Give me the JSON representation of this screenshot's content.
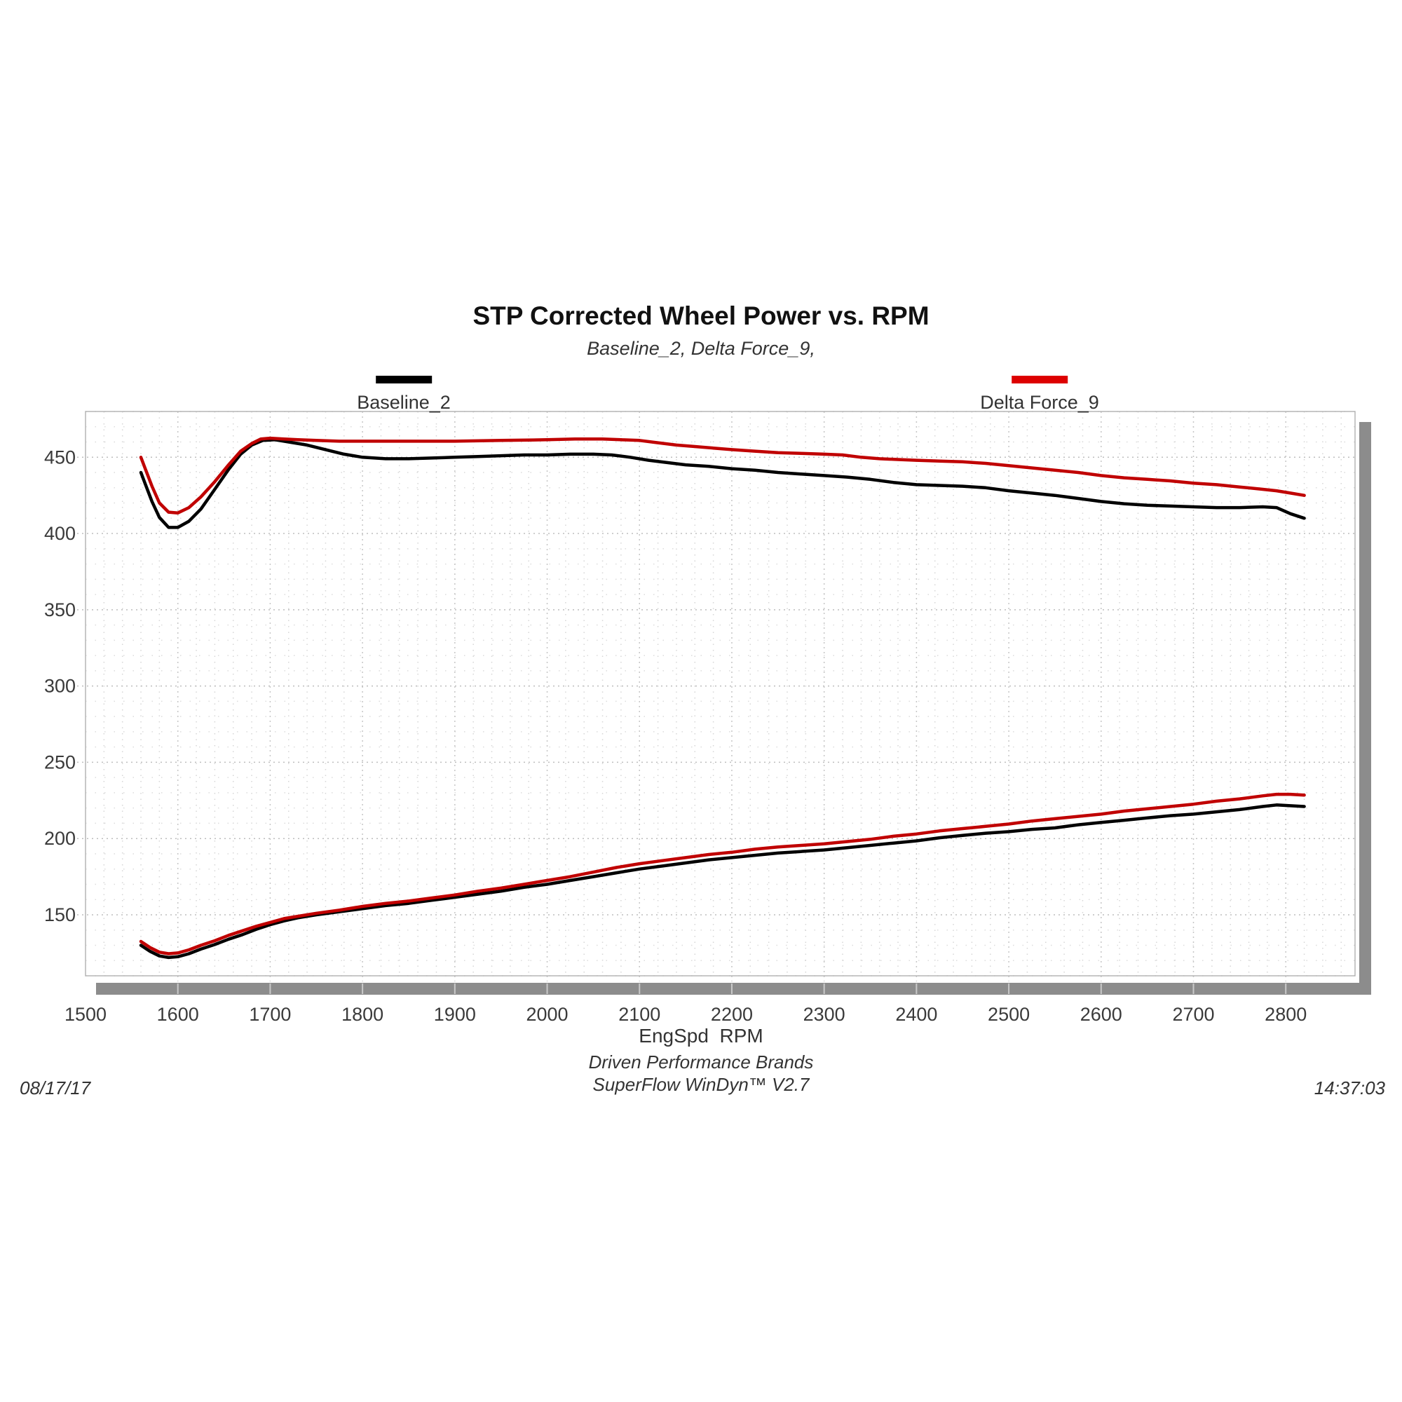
{
  "header": {
    "title": "STP Corrected Wheel Power vs. RPM",
    "subtitle": "Baseline_2, Delta Force_9,"
  },
  "legend": [
    {
      "label": "Baseline_2",
      "color": "#000000"
    },
    {
      "label": "Delta Force_9",
      "color": "#dd0000"
    }
  ],
  "footer": {
    "line1": "Driven Performance Brands",
    "line2": "SuperFlow WinDyn™  V2.7",
    "date": "08/17/17",
    "time": "14:37:03"
  },
  "chart_data": {
    "type": "line",
    "title": "STP Corrected Wheel Power vs. RPM",
    "subtitle": "Baseline_2, Delta Force_9,",
    "xlabel": "EngSpd  RPM",
    "ylabel": "",
    "xlim": [
      1500,
      2875
    ],
    "ylim": [
      110,
      480
    ],
    "x_ticks": [
      1500,
      1600,
      1700,
      1800,
      1900,
      2000,
      2100,
      2200,
      2300,
      2400,
      2500,
      2600,
      2700,
      2800
    ],
    "y_ticks": [
      150,
      200,
      250,
      300,
      350,
      400,
      450
    ],
    "grid": {
      "x_minor_step": 20,
      "y_minor_step": 10,
      "x_major_step": 100,
      "y_major_step": 50
    },
    "legend_position": "top",
    "colors": {
      "baseline": "#000000",
      "deltaforce": "#c00000",
      "grid_major": "#bdbdbd",
      "grid_minor": "#d6d6d6",
      "shadow": "#8c8c8c"
    },
    "series": [
      {
        "name": "Baseline_2 (upper curve)",
        "color": "#000000",
        "points": [
          [
            1560,
            440
          ],
          [
            1565,
            432
          ],
          [
            1572,
            421
          ],
          [
            1580,
            410.5
          ],
          [
            1590,
            404
          ],
          [
            1600,
            404
          ],
          [
            1612,
            408
          ],
          [
            1625,
            416
          ],
          [
            1640,
            429
          ],
          [
            1655,
            442
          ],
          [
            1668,
            452
          ],
          [
            1680,
            458
          ],
          [
            1692,
            461
          ],
          [
            1705,
            461.5
          ],
          [
            1720,
            460
          ],
          [
            1740,
            458
          ],
          [
            1760,
            455
          ],
          [
            1780,
            452
          ],
          [
            1800,
            450
          ],
          [
            1825,
            449
          ],
          [
            1850,
            449
          ],
          [
            1875,
            449.5
          ],
          [
            1900,
            450
          ],
          [
            1925,
            450.5
          ],
          [
            1950,
            451
          ],
          [
            1975,
            451.5
          ],
          [
            2000,
            451.5
          ],
          [
            2025,
            452
          ],
          [
            2050,
            452
          ],
          [
            2070,
            451.5
          ],
          [
            2090,
            450
          ],
          [
            2110,
            448
          ],
          [
            2130,
            446.5
          ],
          [
            2150,
            445
          ],
          [
            2175,
            444
          ],
          [
            2200,
            442.5
          ],
          [
            2225,
            441.5
          ],
          [
            2250,
            440
          ],
          [
            2275,
            439
          ],
          [
            2300,
            438
          ],
          [
            2325,
            437
          ],
          [
            2350,
            435.5
          ],
          [
            2375,
            433.5
          ],
          [
            2400,
            432
          ],
          [
            2425,
            431.5
          ],
          [
            2450,
            431
          ],
          [
            2475,
            430
          ],
          [
            2500,
            428
          ],
          [
            2525,
            426.5
          ],
          [
            2550,
            425
          ],
          [
            2575,
            423
          ],
          [
            2600,
            421
          ],
          [
            2625,
            419.5
          ],
          [
            2650,
            418.5
          ],
          [
            2675,
            418
          ],
          [
            2700,
            417.5
          ],
          [
            2725,
            417
          ],
          [
            2750,
            417
          ],
          [
            2775,
            417.5
          ],
          [
            2790,
            417
          ],
          [
            2805,
            413
          ],
          [
            2820,
            410
          ]
        ]
      },
      {
        "name": "Delta Force_9 (upper curve)",
        "color": "#c00000",
        "points": [
          [
            1560,
            450
          ],
          [
            1565,
            442
          ],
          [
            1572,
            431
          ],
          [
            1580,
            420
          ],
          [
            1590,
            414
          ],
          [
            1600,
            413.5
          ],
          [
            1612,
            417
          ],
          [
            1625,
            424
          ],
          [
            1640,
            434
          ],
          [
            1655,
            445
          ],
          [
            1668,
            454
          ],
          [
            1680,
            459
          ],
          [
            1690,
            462
          ],
          [
            1700,
            462.5
          ],
          [
            1715,
            462
          ],
          [
            1730,
            461.5
          ],
          [
            1750,
            461
          ],
          [
            1775,
            460.5
          ],
          [
            1800,
            460.5
          ],
          [
            1850,
            460.5
          ],
          [
            1900,
            460.5
          ],
          [
            1950,
            461
          ],
          [
            2000,
            461.5
          ],
          [
            2030,
            462
          ],
          [
            2060,
            462
          ],
          [
            2080,
            461.5
          ],
          [
            2100,
            461
          ],
          [
            2120,
            459.5
          ],
          [
            2140,
            458
          ],
          [
            2160,
            457
          ],
          [
            2180,
            456
          ],
          [
            2200,
            455
          ],
          [
            2225,
            454
          ],
          [
            2250,
            453
          ],
          [
            2275,
            452.5
          ],
          [
            2300,
            452
          ],
          [
            2320,
            451.5
          ],
          [
            2340,
            450
          ],
          [
            2360,
            449
          ],
          [
            2380,
            448.5
          ],
          [
            2400,
            448
          ],
          [
            2425,
            447.5
          ],
          [
            2450,
            447
          ],
          [
            2475,
            446
          ],
          [
            2500,
            444.5
          ],
          [
            2525,
            443
          ],
          [
            2550,
            441.5
          ],
          [
            2575,
            440
          ],
          [
            2600,
            438
          ],
          [
            2625,
            436.5
          ],
          [
            2650,
            435.5
          ],
          [
            2675,
            434.5
          ],
          [
            2700,
            433
          ],
          [
            2725,
            432
          ],
          [
            2750,
            430.5
          ],
          [
            2775,
            429
          ],
          [
            2790,
            428
          ],
          [
            2805,
            426.5
          ],
          [
            2820,
            425
          ]
        ]
      },
      {
        "name": "Baseline_2 (lower curve)",
        "color": "#000000",
        "points": [
          [
            1560,
            130
          ],
          [
            1570,
            126
          ],
          [
            1580,
            123
          ],
          [
            1590,
            122
          ],
          [
            1600,
            122.5
          ],
          [
            1612,
            124.5
          ],
          [
            1625,
            127.5
          ],
          [
            1640,
            130.5
          ],
          [
            1655,
            134
          ],
          [
            1670,
            137
          ],
          [
            1685,
            140.5
          ],
          [
            1700,
            143.5
          ],
          [
            1715,
            146
          ],
          [
            1730,
            148
          ],
          [
            1750,
            150
          ],
          [
            1775,
            152
          ],
          [
            1800,
            154
          ],
          [
            1825,
            156
          ],
          [
            1850,
            157.5
          ],
          [
            1875,
            159.5
          ],
          [
            1900,
            161.5
          ],
          [
            1925,
            163.5
          ],
          [
            1950,
            165.5
          ],
          [
            1975,
            168
          ],
          [
            2000,
            170
          ],
          [
            2025,
            172.5
          ],
          [
            2050,
            175
          ],
          [
            2075,
            177.5
          ],
          [
            2100,
            180
          ],
          [
            2125,
            182
          ],
          [
            2150,
            184
          ],
          [
            2175,
            186
          ],
          [
            2200,
            187.5
          ],
          [
            2225,
            189
          ],
          [
            2250,
            190.5
          ],
          [
            2275,
            191.5
          ],
          [
            2300,
            192.5
          ],
          [
            2325,
            194
          ],
          [
            2350,
            195.5
          ],
          [
            2375,
            197
          ],
          [
            2400,
            198.5
          ],
          [
            2425,
            200.5
          ],
          [
            2450,
            202
          ],
          [
            2475,
            203.5
          ],
          [
            2500,
            204.5
          ],
          [
            2525,
            206
          ],
          [
            2550,
            207
          ],
          [
            2575,
            209
          ],
          [
            2600,
            210.5
          ],
          [
            2625,
            212
          ],
          [
            2650,
            213.5
          ],
          [
            2675,
            215
          ],
          [
            2700,
            216
          ],
          [
            2725,
            217.5
          ],
          [
            2750,
            219
          ],
          [
            2775,
            221
          ],
          [
            2790,
            222
          ],
          [
            2805,
            221.5
          ],
          [
            2820,
            221
          ]
        ]
      },
      {
        "name": "Delta Force_9 (lower curve)",
        "color": "#c00000",
        "points": [
          [
            1560,
            132.5
          ],
          [
            1570,
            128.5
          ],
          [
            1580,
            125.5
          ],
          [
            1590,
            124.5
          ],
          [
            1600,
            125
          ],
          [
            1612,
            127
          ],
          [
            1625,
            130
          ],
          [
            1640,
            133
          ],
          [
            1655,
            136.5
          ],
          [
            1670,
            139.5
          ],
          [
            1685,
            142.5
          ],
          [
            1700,
            145
          ],
          [
            1715,
            147.5
          ],
          [
            1730,
            149
          ],
          [
            1750,
            151
          ],
          [
            1775,
            153
          ],
          [
            1800,
            155.5
          ],
          [
            1825,
            157.5
          ],
          [
            1850,
            159
          ],
          [
            1875,
            161
          ],
          [
            1900,
            163
          ],
          [
            1925,
            165.5
          ],
          [
            1950,
            167.5
          ],
          [
            1975,
            170
          ],
          [
            2000,
            172.5
          ],
          [
            2025,
            175
          ],
          [
            2050,
            178
          ],
          [
            2075,
            181
          ],
          [
            2100,
            183.5
          ],
          [
            2125,
            185.5
          ],
          [
            2150,
            187.5
          ],
          [
            2175,
            189.5
          ],
          [
            2200,
            191
          ],
          [
            2225,
            193
          ],
          [
            2250,
            194.5
          ],
          [
            2275,
            195.5
          ],
          [
            2300,
            196.5
          ],
          [
            2325,
            198
          ],
          [
            2350,
            199.5
          ],
          [
            2375,
            201.5
          ],
          [
            2400,
            203
          ],
          [
            2425,
            205
          ],
          [
            2450,
            206.5
          ],
          [
            2475,
            208
          ],
          [
            2500,
            209.5
          ],
          [
            2525,
            211.5
          ],
          [
            2550,
            213
          ],
          [
            2575,
            214.5
          ],
          [
            2600,
            216
          ],
          [
            2625,
            218
          ],
          [
            2650,
            219.5
          ],
          [
            2675,
            221
          ],
          [
            2700,
            222.5
          ],
          [
            2725,
            224.5
          ],
          [
            2750,
            226
          ],
          [
            2775,
            228
          ],
          [
            2790,
            229
          ],
          [
            2805,
            229
          ],
          [
            2820,
            228.5
          ]
        ]
      }
    ]
  }
}
